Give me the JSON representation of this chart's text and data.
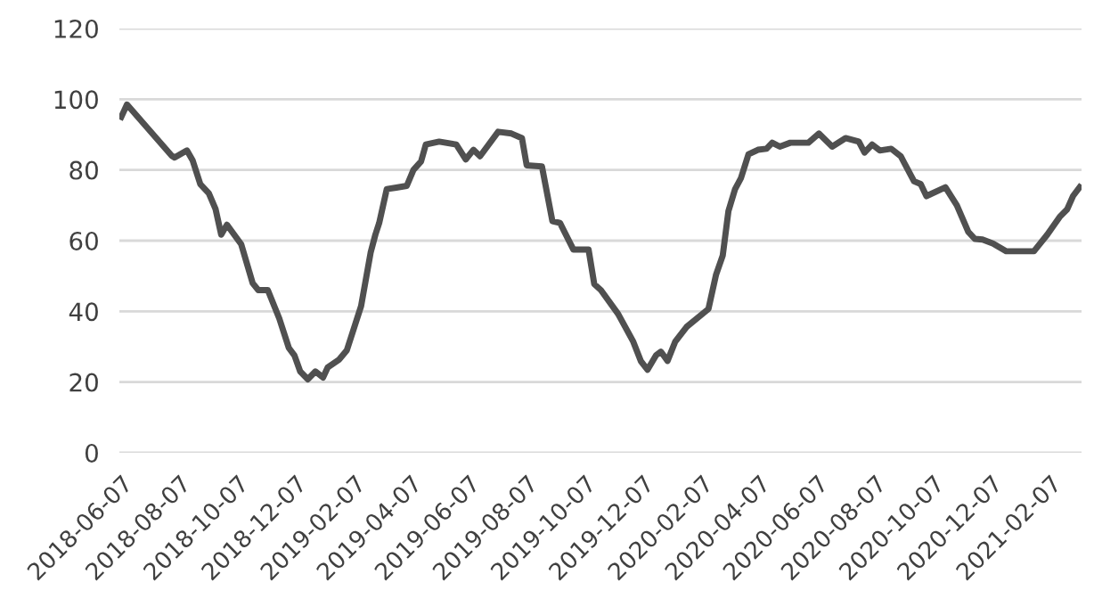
{
  "chart_data": {
    "type": "line",
    "xlim": [
      "2018-06-05",
      "2021-03-12"
    ],
    "ylim": [
      0,
      120
    ],
    "yticks": [
      0,
      20,
      40,
      60,
      80,
      100,
      120
    ],
    "xticks": [
      "2018-06-07",
      "2018-08-07",
      "2018-10-07",
      "2018-12-07",
      "2019-02-07",
      "2019-04-07",
      "2019-06-07",
      "2019-08-07",
      "2019-10-07",
      "2019-12-07",
      "2020-02-07",
      "2020-04-07",
      "2020-06-07",
      "2020-08-07",
      "2020-10-07",
      "2020-12-07",
      "2021-02-07"
    ],
    "grid": "y",
    "line_style": "solid",
    "marker": "none",
    "series": [
      {
        "color": "#505050",
        "x": [
          "2018-06-07",
          "2018-06-13",
          "2018-07-30",
          "2018-08-02",
          "2018-08-15",
          "2018-08-21",
          "2018-08-29",
          "2018-09-07",
          "2018-09-14",
          "2018-09-20",
          "2018-09-26",
          "2018-10-11",
          "2018-10-23",
          "2018-10-29",
          "2018-11-08",
          "2018-11-20",
          "2018-11-30",
          "2018-12-06",
          "2018-12-12",
          "2018-12-20",
          "2018-12-28",
          "2019-01-05",
          "2019-01-10",
          "2019-01-22",
          "2019-01-30",
          "2019-02-14",
          "2019-02-24",
          "2019-03-01",
          "2019-03-05",
          "2019-03-13",
          "2019-03-23",
          "2019-04-03",
          "2019-04-10",
          "2019-04-18",
          "2019-04-23",
          "2019-05-07",
          "2019-05-25",
          "2019-06-04",
          "2019-06-12",
          "2019-06-19",
          "2019-07-08",
          "2019-07-22",
          "2019-08-02",
          "2019-08-07",
          "2019-08-23",
          "2019-09-03",
          "2019-09-11",
          "2019-09-25",
          "2019-10-11",
          "2019-10-17",
          "2019-10-24",
          "2019-11-11",
          "2019-11-27",
          "2019-12-05",
          "2019-12-12",
          "2019-12-21",
          "2019-12-26",
          "2020-01-02",
          "2020-01-10",
          "2020-01-22",
          "2020-02-14",
          "2020-02-22",
          "2020-02-29",
          "2020-03-06",
          "2020-03-13",
          "2020-03-19",
          "2020-03-27",
          "2020-04-06",
          "2020-04-15",
          "2020-04-21",
          "2020-04-29",
          "2020-05-10",
          "2020-05-29",
          "2020-06-09",
          "2020-06-23",
          "2020-07-07",
          "2020-07-21",
          "2020-07-27",
          "2020-08-04",
          "2020-08-12",
          "2020-08-24",
          "2020-09-03",
          "2020-09-17",
          "2020-09-24",
          "2020-09-30",
          "2020-10-20",
          "2020-11-01",
          "2020-11-13",
          "2020-11-20",
          "2020-11-28",
          "2020-12-09",
          "2020-12-23",
          "2021-01-21",
          "2021-02-04",
          "2021-02-17",
          "2021-02-25",
          "2021-03-03",
          "2021-03-10"
        ],
        "values": [
          95,
          98.5,
          84,
          83.5,
          85.5,
          82.7,
          76,
          73.4,
          69,
          61.7,
          64.5,
          59,
          48,
          46,
          46,
          38,
          29.7,
          27.5,
          23,
          20.8,
          23,
          21.3,
          24.2,
          26.4,
          29,
          41.5,
          56.6,
          61.7,
          65,
          74.6,
          75,
          75.5,
          80,
          82.4,
          87.2,
          88,
          87.2,
          83,
          85.7,
          83.9,
          90.8,
          90.3,
          89,
          81.3,
          81,
          65.5,
          65,
          57.5,
          57.5,
          47.7,
          46,
          39.3,
          31.4,
          25.9,
          23.5,
          27.6,
          28.6,
          26,
          31.4,
          35.6,
          40.7,
          50.4,
          55.8,
          68.4,
          74.6,
          77.6,
          84.4,
          85.7,
          86,
          87.7,
          86.6,
          87.7,
          87.7,
          90.3,
          86.6,
          89,
          88,
          84.9,
          87.2,
          85.5,
          86,
          83.9,
          76.8,
          76,
          72.6,
          75.1,
          70,
          62.5,
          60.5,
          60.3,
          59.2,
          57,
          57,
          61.7,
          66.7,
          68.9,
          72.6,
          75.1
        ]
      }
    ]
  }
}
